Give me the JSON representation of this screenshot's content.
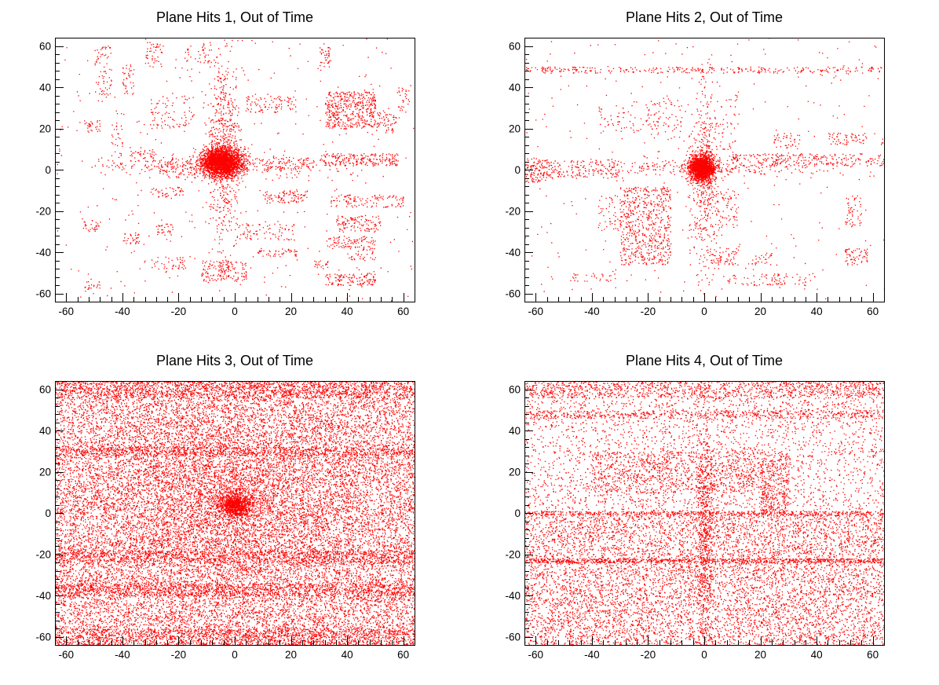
{
  "chart_data": [
    {
      "type": "scatter",
      "title": "Plane Hits 1, Out of Time",
      "xlabel": "",
      "ylabel": "",
      "xlim": [
        -64,
        64
      ],
      "ylim": [
        -64,
        64
      ],
      "xticks": [
        -60,
        -40,
        -20,
        0,
        20,
        40,
        60
      ],
      "yticks": [
        -60,
        -40,
        -20,
        0,
        20,
        40,
        60
      ],
      "marker_color": "#ff0000",
      "grid": false,
      "legend": "none",
      "series": [
        {
          "values": {
            "clusters": [
              {
                "x": -5,
                "y": 4,
                "sigma_x": 3.5,
                "sigma_y": 3.5,
                "count": 2600
              },
              {
                "x": -4,
                "y": 10,
                "sigma_x": 3,
                "sigma_y": 22,
                "count": 600
              },
              {
                "x": -4,
                "y": 2,
                "sigma_x": 20,
                "sigma_y": 3,
                "count": 350
              }
            ],
            "boxes": [
              {
                "x0": -50,
                "x1": -44,
                "y0": 35,
                "y1": 60,
                "count": 70
              },
              {
                "x0": -40,
                "x1": -36,
                "y0": 36,
                "y1": 52,
                "count": 40
              },
              {
                "x0": -54,
                "x1": -48,
                "y0": 18,
                "y1": 24,
                "count": 30
              },
              {
                "x0": -44,
                "x1": -40,
                "y0": 0,
                "y1": 30,
                "count": 40
              },
              {
                "x0": -32,
                "x1": -26,
                "y0": 50,
                "y1": 62,
                "count": 45
              },
              {
                "x0": -18,
                "x1": -8,
                "y0": 52,
                "y1": 62,
                "count": 40
              },
              {
                "x0": -30,
                "x1": -14,
                "y0": 20,
                "y1": 36,
                "count": 80
              },
              {
                "x0": 4,
                "x1": 22,
                "y0": 28,
                "y1": 36,
                "count": 90
              },
              {
                "x0": 30,
                "x1": 34,
                "y0": 50,
                "y1": 60,
                "count": 40
              },
              {
                "x0": 32,
                "x1": 50,
                "y0": 20,
                "y1": 38,
                "count": 450
              },
              {
                "x0": 50,
                "x1": 58,
                "y0": 18,
                "y1": 28,
                "count": 60
              },
              {
                "x0": 58,
                "x1": 62,
                "y0": 28,
                "y1": 40,
                "count": 25
              },
              {
                "x0": 30,
                "x1": 58,
                "y0": 2,
                "y1": 8,
                "count": 220
              },
              {
                "x0": 10,
                "x1": 28,
                "y0": 0,
                "y1": 6,
                "count": 60
              },
              {
                "x0": -28,
                "x1": -10,
                "y0": -4,
                "y1": 6,
                "count": 80
              },
              {
                "x0": -38,
                "x1": -28,
                "y0": 4,
                "y1": 10,
                "count": 40
              },
              {
                "x0": -30,
                "x1": -18,
                "y0": -14,
                "y1": -8,
                "count": 40
              },
              {
                "x0": 10,
                "x1": 26,
                "y0": -16,
                "y1": -10,
                "count": 90
              },
              {
                "x0": 34,
                "x1": 60,
                "y0": -18,
                "y1": -12,
                "count": 110
              },
              {
                "x0": 36,
                "x1": 52,
                "y0": -30,
                "y1": -22,
                "count": 110
              },
              {
                "x0": 32,
                "x1": 50,
                "y0": -38,
                "y1": -32,
                "count": 90
              },
              {
                "x0": 0,
                "x1": 22,
                "y0": -34,
                "y1": -26,
                "count": 80
              },
              {
                "x0": 8,
                "x1": 22,
                "y0": -42,
                "y1": -38,
                "count": 50
              },
              {
                "x0": 40,
                "x1": 50,
                "y0": -44,
                "y1": -38,
                "count": 35
              },
              {
                "x0": -12,
                "x1": 4,
                "y0": -54,
                "y1": -44,
                "count": 150
              },
              {
                "x0": 32,
                "x1": 50,
                "y0": -56,
                "y1": -50,
                "count": 120
              },
              {
                "x0": 28,
                "x1": 34,
                "y0": -48,
                "y1": -44,
                "count": 20
              },
              {
                "x0": -40,
                "x1": -34,
                "y0": -36,
                "y1": -30,
                "count": 30
              },
              {
                "x0": -54,
                "x1": -48,
                "y0": -30,
                "y1": -24,
                "count": 30
              },
              {
                "x0": -54,
                "x1": -48,
                "y0": -58,
                "y1": -54,
                "count": 20
              },
              {
                "x0": -30,
                "x1": -18,
                "y0": -48,
                "y1": -42,
                "count": 40
              },
              {
                "x0": -28,
                "x1": -22,
                "y0": -32,
                "y1": -26,
                "count": 30
              },
              {
                "x0": -64,
                "x1": 64,
                "y0": -64,
                "y1": 64,
                "count": 350
              }
            ]
          }
        }
      ]
    },
    {
      "type": "scatter",
      "title": "Plane Hits 2, Out of Time",
      "xlabel": "",
      "ylabel": "",
      "xlim": [
        -64,
        64
      ],
      "ylim": [
        -64,
        64
      ],
      "xticks": [
        -60,
        -40,
        -20,
        0,
        20,
        40,
        60
      ],
      "yticks": [
        -60,
        -40,
        -20,
        0,
        20,
        40,
        60
      ],
      "marker_color": "#ff0000",
      "grid": false,
      "legend": "none",
      "series": [
        {
          "values": {
            "clusters": [
              {
                "x": -1,
                "y": 1,
                "sigma_x": 2.2,
                "sigma_y": 3,
                "count": 1900
              },
              {
                "x": 0,
                "y": -5,
                "sigma_x": 2.5,
                "sigma_y": 24,
                "count": 500
              },
              {
                "x": 0,
                "y": 1,
                "sigma_x": 25,
                "sigma_y": 2,
                "count": 250
              }
            ],
            "boxes": [
              {
                "x0": -64,
                "x1": 64,
                "y0": 47,
                "y1": 50,
                "count": 300
              },
              {
                "x0": -64,
                "x1": -30,
                "y0": -4,
                "y1": 5,
                "count": 200
              },
              {
                "x0": -64,
                "x1": -56,
                "y0": -6,
                "y1": 6,
                "count": 80
              },
              {
                "x0": 10,
                "x1": 64,
                "y0": 2,
                "y1": 8,
                "count": 250
              },
              {
                "x0": -38,
                "x1": -16,
                "y0": 18,
                "y1": 32,
                "count": 70
              },
              {
                "x0": -20,
                "x1": -8,
                "y0": 14,
                "y1": 36,
                "count": 60
              },
              {
                "x0": 6,
                "x1": 12,
                "y0": 0,
                "y1": 38,
                "count": 50
              },
              {
                "x0": -30,
                "x1": -12,
                "y0": -46,
                "y1": -8,
                "count": 600
              },
              {
                "x0": -38,
                "x1": -30,
                "y0": -30,
                "y1": -12,
                "count": 50
              },
              {
                "x0": 4,
                "x1": 12,
                "y0": -28,
                "y1": -10,
                "count": 70
              },
              {
                "x0": 2,
                "x1": 12,
                "y0": -46,
                "y1": -38,
                "count": 60
              },
              {
                "x0": 16,
                "x1": 24,
                "y0": -46,
                "y1": -40,
                "count": 25
              },
              {
                "x0": 50,
                "x1": 58,
                "y0": -46,
                "y1": -38,
                "count": 60
              },
              {
                "x0": 50,
                "x1": 56,
                "y0": -28,
                "y1": -12,
                "count": 50
              },
              {
                "x0": 44,
                "x1": 58,
                "y0": 12,
                "y1": 18,
                "count": 60
              },
              {
                "x0": 24,
                "x1": 34,
                "y0": 10,
                "y1": 18,
                "count": 40
              },
              {
                "x0": 8,
                "x1": 40,
                "y0": -56,
                "y1": -50,
                "count": 80
              },
              {
                "x0": -48,
                "x1": -30,
                "y0": -54,
                "y1": -50,
                "count": 30
              },
              {
                "x0": -64,
                "x1": 64,
                "y0": -64,
                "y1": 64,
                "count": 300
              }
            ]
          }
        }
      ]
    },
    {
      "type": "scatter",
      "title": "Plane Hits 3, Out of Time",
      "xlabel": "",
      "ylabel": "",
      "xlim": [
        -64,
        64
      ],
      "ylim": [
        -64,
        64
      ],
      "xticks": [
        -60,
        -40,
        -20,
        0,
        20,
        40,
        60
      ],
      "yticks": [
        -60,
        -40,
        -20,
        0,
        20,
        40,
        60
      ],
      "marker_color": "#ff0000",
      "grid": false,
      "legend": "none",
      "series": [
        {
          "values": {
            "clusters": [
              {
                "x": 0,
                "y": 4,
                "sigma_x": 3,
                "sigma_y": 3,
                "count": 900
              },
              {
                "x": -5,
                "y": 5,
                "sigma_x": 25,
                "sigma_y": 25,
                "count": 3000
              }
            ],
            "boxes": [
              {
                "x0": -64,
                "x1": 64,
                "y0": -64,
                "y1": 64,
                "count": 19000
              },
              {
                "x0": -64,
                "x1": 64,
                "y0": -64,
                "y1": -56,
                "count": 1200
              },
              {
                "x0": -64,
                "x1": 64,
                "y0": -40,
                "y1": -34,
                "count": 1100
              },
              {
                "x0": -64,
                "x1": 64,
                "y0": -24,
                "y1": -18,
                "count": 900
              },
              {
                "x0": -64,
                "x1": 64,
                "y0": 28,
                "y1": 32,
                "count": 700
              },
              {
                "x0": -64,
                "x1": 64,
                "y0": 56,
                "y1": 64,
                "count": 1100
              }
            ]
          }
        }
      ]
    },
    {
      "type": "scatter",
      "title": "Plane Hits 4, Out of Time",
      "xlabel": "",
      "ylabel": "",
      "xlim": [
        -64,
        64
      ],
      "ylim": [
        -64,
        64
      ],
      "xticks": [
        -60,
        -40,
        -20,
        0,
        20,
        40,
        60
      ],
      "yticks": [
        -60,
        -40,
        -20,
        0,
        20,
        40,
        60
      ],
      "marker_color": "#ff0000",
      "grid": false,
      "legend": "none",
      "series": [
        {
          "values": {
            "clusters": [
              {
                "x": 0,
                "y": -10,
                "sigma_x": 1.5,
                "sigma_y": 30,
                "count": 600
              }
            ],
            "boxes": [
              {
                "x0": -64,
                "x1": 64,
                "y0": -64,
                "y1": 0,
                "count": 7500
              },
              {
                "x0": -64,
                "x1": 64,
                "y0": -24,
                "y1": -22,
                "count": 700
              },
              {
                "x0": -64,
                "x1": 64,
                "y0": -1,
                "y1": 1,
                "count": 500
              },
              {
                "x0": -64,
                "x1": 64,
                "y0": 0,
                "y1": 64,
                "count": 3000
              },
              {
                "x0": -64,
                "x1": 64,
                "y0": 56,
                "y1": 64,
                "count": 900
              },
              {
                "x0": -64,
                "x1": 64,
                "y0": 46,
                "y1": 50,
                "count": 500
              },
              {
                "x0": -40,
                "x1": 20,
                "y0": 10,
                "y1": 30,
                "count": 800
              },
              {
                "x0": 20,
                "x1": 30,
                "y0": 0,
                "y1": 30,
                "count": 350
              }
            ]
          }
        }
      ]
    }
  ]
}
